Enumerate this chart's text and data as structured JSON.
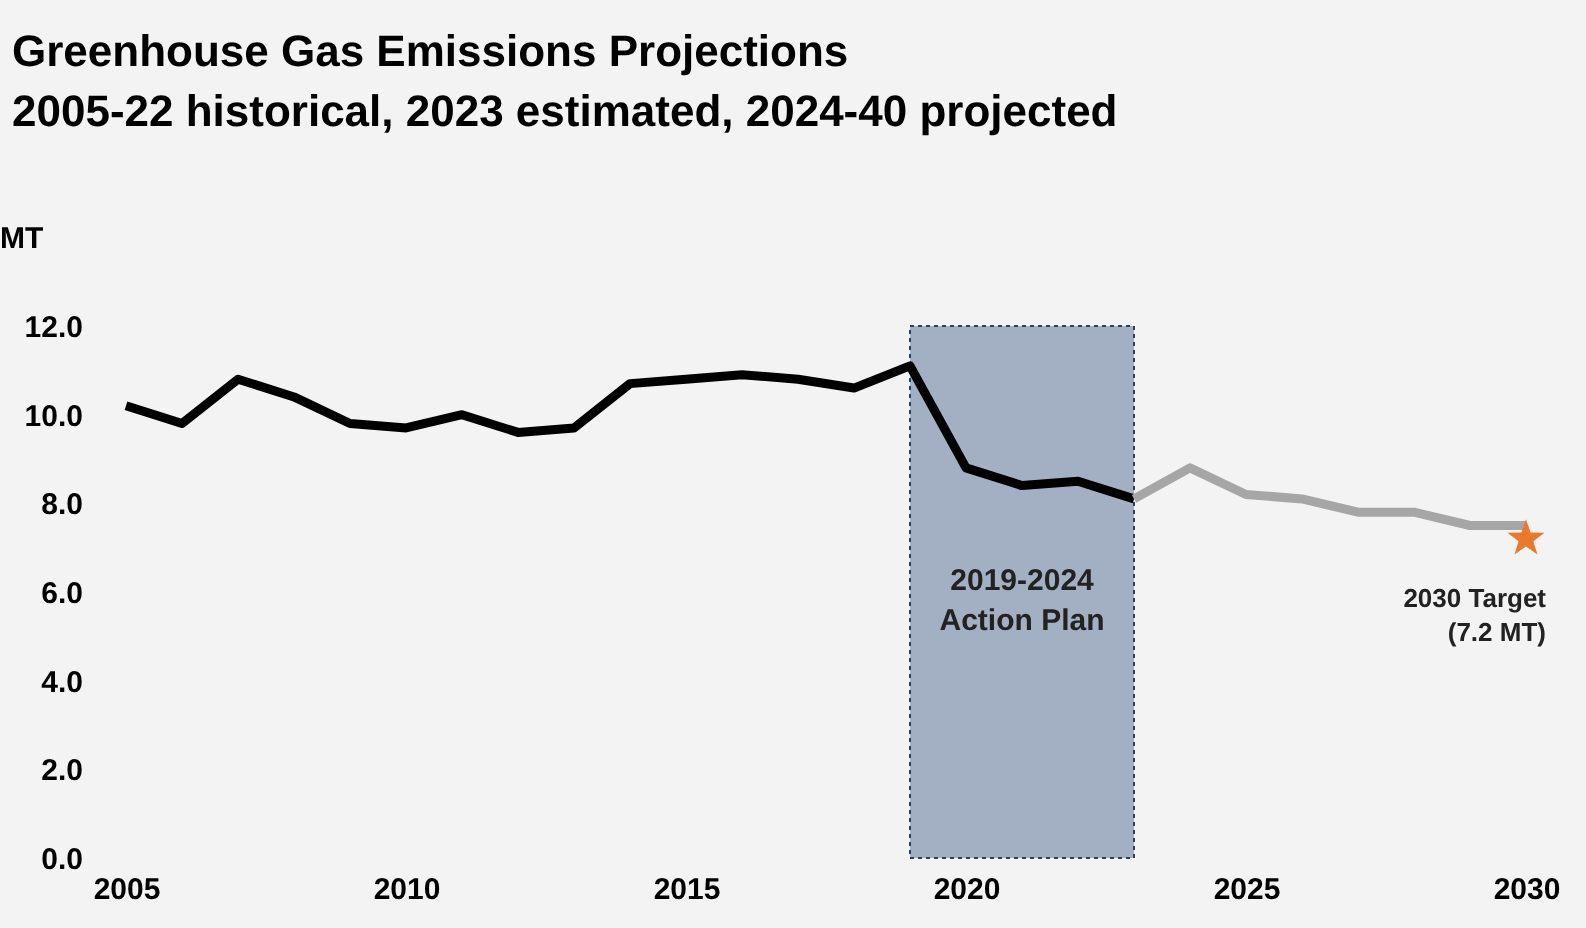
{
  "chart_data": {
    "type": "line",
    "title": "Greenhouse Gas Emissions Projections",
    "subtitle": "2005-22 historical, 2023 estimated, 2024-40 projected",
    "ylabel": "MT",
    "xlim": [
      2005,
      2030
    ],
    "xticks": [
      2005,
      2010,
      2015,
      2020,
      2025,
      2030
    ],
    "ylim": [
      0,
      12
    ],
    "yticks": [
      {
        "value": 0,
        "label": "0.0"
      },
      {
        "value": 2,
        "label": "2.0"
      },
      {
        "value": 4,
        "label": "4.0"
      },
      {
        "value": 6,
        "label": "6.0"
      },
      {
        "value": 8,
        "label": "8.0"
      },
      {
        "value": 10,
        "label": "10.0"
      },
      {
        "value": 12,
        "label": "12.0"
      }
    ],
    "grid": false,
    "marker": "none",
    "line_style": "solid",
    "series": [
      {
        "color": "#000000",
        "x": [
          2005,
          2006,
          2007,
          2008,
          2009,
          2010,
          2011,
          2012,
          2013,
          2014,
          2015,
          2016,
          2017,
          2018,
          2019,
          2020,
          2021,
          2022,
          2023
        ],
        "values": [
          10.2,
          9.8,
          10.8,
          10.4,
          9.8,
          9.7,
          10.0,
          9.6,
          9.7,
          10.7,
          10.8,
          10.9,
          10.8,
          10.6,
          11.1,
          8.8,
          8.4,
          8.5,
          8.1
        ]
      },
      {
        "color": "#a6a6a6",
        "x": [
          2023,
          2024,
          2025,
          2026,
          2027,
          2028,
          2029,
          2030
        ],
        "values": [
          8.1,
          8.8,
          8.2,
          8.1,
          7.8,
          7.8,
          7.5,
          7.5
        ]
      },
      {
        "type": "scatter",
        "color": "#e8792d",
        "marker": "star",
        "x": [
          2030
        ],
        "values": [
          7.2
        ]
      }
    ],
    "bands": [
      {
        "axis": "x",
        "from": 2019,
        "to": 2023,
        "label": "2019-2024\nAction Plan",
        "color": "#a3b0c4"
      }
    ],
    "annotations": [
      {
        "text": "2030 Target\n(7.2 MT)",
        "x": 2030,
        "y": 7.2
      }
    ]
  }
}
